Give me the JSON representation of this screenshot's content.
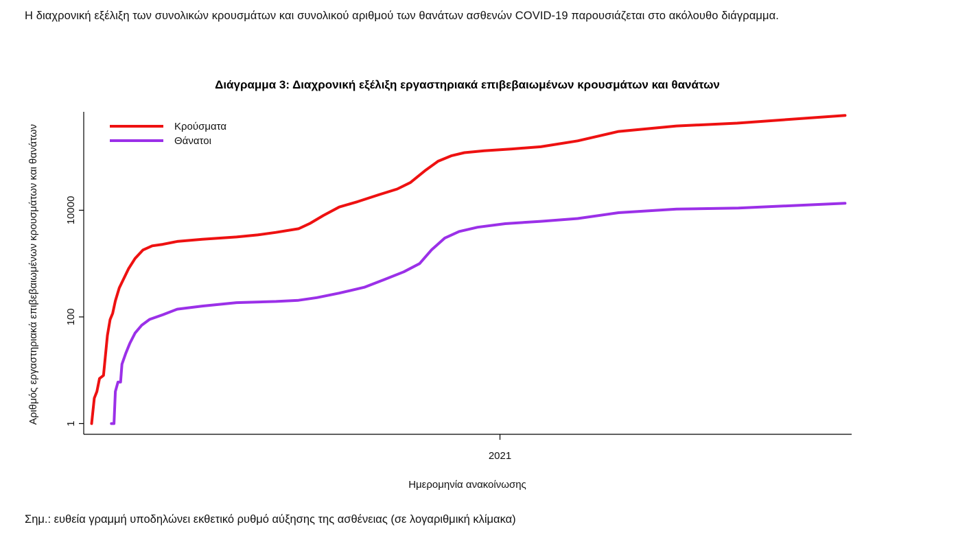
{
  "intro_text": "Η διαχρονική εξέλιξη των συνολικών κρουσμάτων και συνολικού αριθμού των θανάτων ασθενών COVID-19 παρουσιάζεται στο ακόλουθο διάγραμμα.",
  "note_text": "Σημ.: ευθεία γραμμή υποδηλώνει εκθετικό ρυθμό αύξησης της ασθένειας (σε λογαριθμική κλίμακα)",
  "chart_data": {
    "type": "line",
    "title": "Διάγραμμα 3: Διαχρονική εξέλιξη εργαστηριακά επιβεβαιωμένων κρουσμάτων και θανάτων",
    "xlabel": "Ημερομηνία ανακοίνωσης",
    "ylabel": "Αριθμός εργαστηριακά επιβεβαιωμένων κρουσμάτων και θανάτων",
    "x_ticks": [
      {
        "date": "2021-01-01",
        "label": "2021"
      }
    ],
    "xlim": [
      "2020-02-20",
      "2021-09-25"
    ],
    "y_scale": "log10",
    "y_ticks": [
      1,
      100,
      10000
    ],
    "ylim": [
      0.63,
      700000
    ],
    "legend": "top-left",
    "grid": false,
    "series": [
      {
        "name": "Κρούσματα",
        "color": "#ee1111",
        "points": [
          [
            "2020-02-26",
            1
          ],
          [
            "2020-02-28",
            3
          ],
          [
            "2020-03-01",
            4
          ],
          [
            "2020-03-03",
            7
          ],
          [
            "2020-03-06",
            8
          ],
          [
            "2020-03-09",
            45
          ],
          [
            "2020-03-11",
            89
          ],
          [
            "2020-03-13",
            117
          ],
          [
            "2020-03-15",
            200
          ],
          [
            "2020-03-18",
            350
          ],
          [
            "2020-03-21",
            500
          ],
          [
            "2020-03-25",
            800
          ],
          [
            "2020-03-30",
            1250
          ],
          [
            "2020-04-05",
            1800
          ],
          [
            "2020-04-12",
            2150
          ],
          [
            "2020-04-20",
            2300
          ],
          [
            "2020-05-01",
            2600
          ],
          [
            "2020-05-20",
            2850
          ],
          [
            "2020-06-15",
            3150
          ],
          [
            "2020-07-01",
            3450
          ],
          [
            "2020-07-15",
            3850
          ],
          [
            "2020-08-01",
            4500
          ],
          [
            "2020-08-10",
            5700
          ],
          [
            "2020-08-20",
            8000
          ],
          [
            "2020-09-01",
            11500
          ],
          [
            "2020-09-15",
            14500
          ],
          [
            "2020-10-01",
            19500
          ],
          [
            "2020-10-15",
            25000
          ],
          [
            "2020-10-25",
            33000
          ],
          [
            "2020-11-05",
            55000
          ],
          [
            "2020-11-15",
            83000
          ],
          [
            "2020-11-25",
            105000
          ],
          [
            "2020-12-05",
            120000
          ],
          [
            "2020-12-20",
            130000
          ],
          [
            "2021-01-10",
            141000
          ],
          [
            "2021-02-01",
            155000
          ],
          [
            "2021-03-01",
            200000
          ],
          [
            "2021-04-01",
            300000
          ],
          [
            "2021-05-15",
            380000
          ],
          [
            "2021-06-30",
            430000
          ],
          [
            "2021-09-20",
            600000
          ]
        ]
      },
      {
        "name": "Θάνατοι",
        "color": "#9b30e8",
        "points": [
          [
            "2020-03-12",
            1
          ],
          [
            "2020-03-14",
            1
          ],
          [
            "2020-03-15",
            4
          ],
          [
            "2020-03-17",
            6
          ],
          [
            "2020-03-19",
            6
          ],
          [
            "2020-03-20",
            13
          ],
          [
            "2020-03-23",
            21
          ],
          [
            "2020-03-26",
            32
          ],
          [
            "2020-03-30",
            50
          ],
          [
            "2020-04-04",
            70
          ],
          [
            "2020-04-10",
            90
          ],
          [
            "2020-04-20",
            110
          ],
          [
            "2020-05-01",
            140
          ],
          [
            "2020-05-20",
            160
          ],
          [
            "2020-06-15",
            185
          ],
          [
            "2020-07-15",
            195
          ],
          [
            "2020-08-01",
            205
          ],
          [
            "2020-08-15",
            230
          ],
          [
            "2020-09-01",
            280
          ],
          [
            "2020-09-20",
            360
          ],
          [
            "2020-10-05",
            500
          ],
          [
            "2020-10-20",
            700
          ],
          [
            "2020-11-01",
            1000
          ],
          [
            "2020-11-10",
            1800
          ],
          [
            "2020-11-20",
            3000
          ],
          [
            "2020-12-01",
            4000
          ],
          [
            "2020-12-15",
            4800
          ],
          [
            "2021-01-05",
            5600
          ],
          [
            "2021-02-01",
            6200
          ],
          [
            "2021-03-01",
            7000
          ],
          [
            "2021-04-01",
            9000
          ],
          [
            "2021-05-15",
            10500
          ],
          [
            "2021-07-01",
            11000
          ],
          [
            "2021-09-20",
            13500
          ]
        ]
      }
    ]
  }
}
